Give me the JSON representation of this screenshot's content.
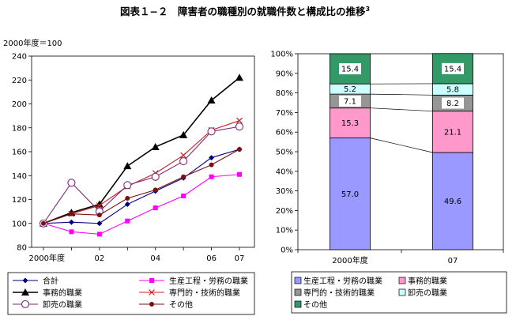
{
  "title": "図表１−２　障害者の職種別の就職件数と構成比の推移",
  "title_sup": "3",
  "chart_data": [
    {
      "type": "line",
      "ylabel": "2000年度＝100",
      "x": [
        2000,
        2001,
        2002,
        2003,
        2004,
        2005,
        2006,
        2007
      ],
      "x_tick_labels": [
        "2000年度",
        "02",
        "04",
        "06",
        "07"
      ],
      "x_tick_positions": [
        2000,
        2002,
        2004,
        2006,
        2007
      ],
      "ylim": [
        80,
        240
      ],
      "y_ticks": [
        80,
        100,
        120,
        140,
        160,
        180,
        200,
        220,
        240
      ],
      "legend_position": "bottom",
      "series": [
        {
          "name": "合計",
          "color": "#000080",
          "marker": "diamond",
          "values": [
            100,
            101,
            100,
            116,
            127,
            138,
            155,
            162
          ]
        },
        {
          "name": "生産工程・労務の職業",
          "color": "#ff00ff",
          "marker": "square",
          "values": [
            100,
            93,
            91,
            102,
            113,
            123,
            139,
            141
          ]
        },
        {
          "name": "事務的職業",
          "color": "#000000",
          "marker": "triangle",
          "values": [
            100,
            109,
            116,
            148,
            164,
            174,
            203,
            222
          ]
        },
        {
          "name": "専門的・技術的職業",
          "color": "#cc2020",
          "marker": "x",
          "values": [
            100,
            108,
            115,
            131,
            142,
            157,
            178,
            186
          ]
        },
        {
          "name": "卸売の職業",
          "color": "#7a2a7a",
          "marker": "circle-open",
          "values": [
            100,
            134,
            110,
            132,
            139,
            152,
            177,
            181
          ]
        },
        {
          "name": "その他",
          "color": "#7a1010",
          "marker": "circle",
          "values": [
            100,
            108,
            107,
            121,
            128,
            139,
            149,
            162
          ]
        }
      ]
    },
    {
      "type": "stacked-bar",
      "categories": [
        "2000年度",
        "07"
      ],
      "ylim": [
        0,
        100
      ],
      "y_ticks": [
        "0%",
        "10%",
        "20%",
        "30%",
        "40%",
        "50%",
        "60%",
        "70%",
        "80%",
        "90%",
        "100%"
      ],
      "legend_position": "bottom",
      "series": [
        {
          "name": "生産工程・労務の職業",
          "color": "#9999ff",
          "values": [
            57.0,
            49.6
          ],
          "labels": [
            "57.0",
            "49.6"
          ]
        },
        {
          "name": "事務的職業",
          "color": "#ff99cc",
          "values": [
            15.3,
            21.1
          ],
          "labels": [
            "15.3",
            "21.1"
          ]
        },
        {
          "name": "専門的・技術的職業",
          "color": "#969696",
          "values": [
            7.1,
            8.2
          ],
          "labels": [
            "7.1",
            "8.2"
          ]
        },
        {
          "name": "卸売の職業",
          "color": "#ccffff",
          "values": [
            5.2,
            5.8
          ],
          "labels": [
            "5.2",
            "5.8"
          ]
        },
        {
          "name": "その他",
          "color": "#339966",
          "values": [
            15.4,
            15.4
          ],
          "labels": [
            "15.4",
            "15.4"
          ]
        }
      ]
    }
  ]
}
